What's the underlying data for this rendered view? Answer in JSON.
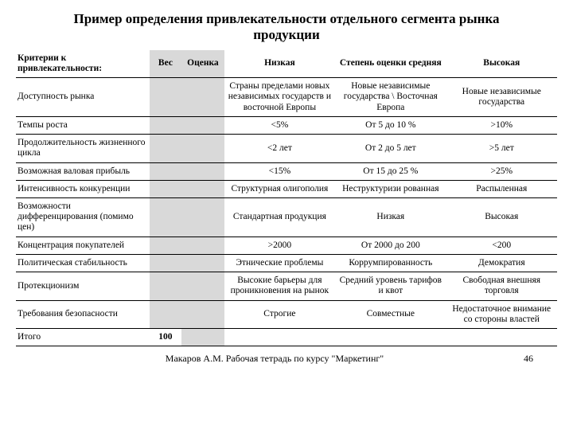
{
  "title": "Пример определения привлекательности отдельного сегмента рынка продукции",
  "headers": {
    "criteria": "Критерии к привлекательности:",
    "ves": "Вес",
    "ocenka": "Оценка",
    "low": "Низкая",
    "mid": "Степень оценки средняя",
    "high": "Высокая"
  },
  "rows": [
    {
      "criteria": "Доступность рынка",
      "ves": "",
      "ocenka": "",
      "low": "Страны пределами новых независимых государств и восточной Европы",
      "mid": "Новые независимые государства \\ Восточная Европа",
      "high": "Новые независимые государства"
    },
    {
      "criteria": "Темпы роста",
      "ves": "",
      "ocenka": "",
      "low": "<5%",
      "mid": "От 5 до 10 %",
      "high": ">10%"
    },
    {
      "criteria": "Продолжительность жизненного цикла",
      "ves": "",
      "ocenka": "",
      "low": "<2 лет",
      "mid": "От 2 до 5 лет",
      "high": ">5 лет"
    },
    {
      "criteria": "Возможная валовая прибыль",
      "ves": "",
      "ocenka": "",
      "low": "<15%",
      "mid": "От 15 до 25 %",
      "high": ">25%"
    },
    {
      "criteria": "Интенсивность конкуренции",
      "ves": "",
      "ocenka": "",
      "low": "Структурная олигополия",
      "mid": "Неструктуризи рованная",
      "high": "Распыленная"
    },
    {
      "criteria": "Возможности дифференцирования (помимо цен)",
      "ves": "",
      "ocenka": "",
      "low": "Стандартная продукция",
      "mid": "Низкая",
      "high": "Высокая"
    },
    {
      "criteria": "Концентрация покупателей",
      "ves": "",
      "ocenka": "",
      "low": ">2000",
      "mid": "От 2000 до 200",
      "high": "<200"
    },
    {
      "criteria": "Политическая стабильность",
      "ves": "",
      "ocenka": "",
      "low": "Этнические проблемы",
      "mid": "Коррумпированность",
      "high": "Демократия"
    },
    {
      "criteria": "Протекционизм",
      "ves": "",
      "ocenka": "",
      "low": "Высокие барьеры для проникновения на рынок",
      "mid": "Средний уровень тарифов и квот",
      "high": "Свободная внешняя торговля"
    },
    {
      "criteria": "Требования безопасности",
      "ves": "",
      "ocenka": "",
      "low": "Строгие",
      "mid": "Совместные",
      "high": "Недостаточное внимание со стороны властей"
    }
  ],
  "total": {
    "label": "Итого",
    "ves": "100"
  },
  "footer": {
    "mid": "Макаров А.М. Рабочая тетрадь по курсу \"Маркетинг\"",
    "page": "46"
  }
}
